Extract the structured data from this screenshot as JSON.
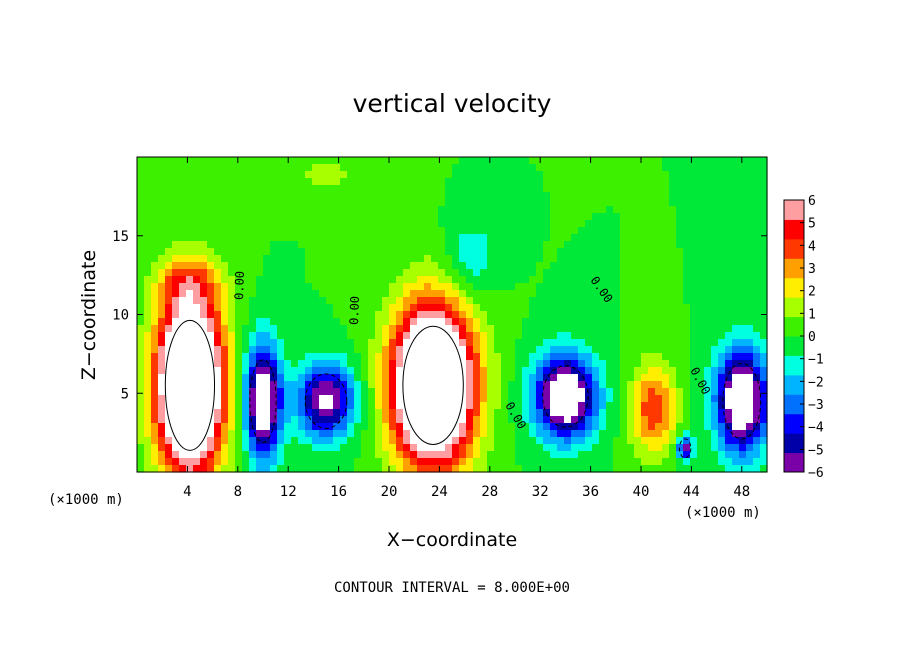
{
  "chart_data": {
    "type": "heatmap",
    "title": "vertical velocity",
    "xlabel": "X−coordinate",
    "ylabel": "Z−coordinate",
    "x_unit_left": "(×1000 m)",
    "x_unit_right": "(×1000 m)",
    "xlim": [
      0,
      50
    ],
    "ylim": [
      0,
      20
    ],
    "xticks": [
      "4",
      "8",
      "12",
      "16",
      "20",
      "24",
      "28",
      "32",
      "36",
      "40",
      "44",
      "48"
    ],
    "yticks": [
      "5",
      "10",
      "15"
    ],
    "colorbar_labels": [
      "6",
      "5",
      "4",
      "3",
      "2",
      "1",
      "0",
      "−1",
      "−2",
      "−3",
      "−4",
      "−5",
      "−6"
    ],
    "colorbar_range": [
      -6,
      6
    ],
    "contour_labels": [
      "0.00",
      "0.00",
      "0.00",
      "0.00",
      "0.00"
    ],
    "contour_interval_text": "CONTOUR INTERVAL = 8.000E+00",
    "grid": false,
    "features": [
      {
        "sign": "up",
        "x": 4.2,
        "z": 5.5,
        "sx": 2.6,
        "sz": 5.5,
        "peak": 14
      },
      {
        "sign": "up",
        "x": 23.5,
        "z": 5.5,
        "sx": 3.2,
        "sz": 5.0,
        "peak": 14
      },
      {
        "sign": "up",
        "x": 41.0,
        "z": 4.0,
        "sx": 1.8,
        "sz": 2.8,
        "peak": 4.5
      },
      {
        "sign": "down",
        "x": 10.0,
        "z": 4.5,
        "sx": 1.4,
        "sz": 3.5,
        "peak": -9
      },
      {
        "sign": "down",
        "x": 15.0,
        "z": 4.5,
        "sx": 2.2,
        "sz": 2.3,
        "peak": -7
      },
      {
        "sign": "down",
        "x": 34.0,
        "z": 4.8,
        "sx": 2.4,
        "sz": 2.6,
        "peak": -9
      },
      {
        "sign": "down",
        "x": 48.0,
        "z": 4.5,
        "sx": 2.0,
        "sz": 3.2,
        "peak": -9
      },
      {
        "sign": "down",
        "x": 43.5,
        "z": 1.5,
        "sx": 0.6,
        "sz": 0.8,
        "peak": -6
      },
      {
        "sign": "down",
        "x": 26.5,
        "z": 13.5,
        "sx": 2.0,
        "sz": 2.5,
        "peak": -1.8
      },
      {
        "sign": "up",
        "x": 4.0,
        "z": 12.0,
        "sx": 2.5,
        "sz": 1.5,
        "peak": 2.5
      },
      {
        "sign": "up",
        "x": 15.0,
        "z": 19.0,
        "sx": 3.0,
        "sz": 1.5,
        "peak": 1.2
      }
    ]
  },
  "colors": {
    "palette": [
      "#7a00a8",
      "#0000a8",
      "#0000ff",
      "#0070ff",
      "#00b4ff",
      "#00ffe0",
      "#00e838",
      "#3cf000",
      "#a8ff00",
      "#ffee00",
      "#ff9f00",
      "#ff3800",
      "#ff0000",
      "#ff9ea0"
    ]
  }
}
